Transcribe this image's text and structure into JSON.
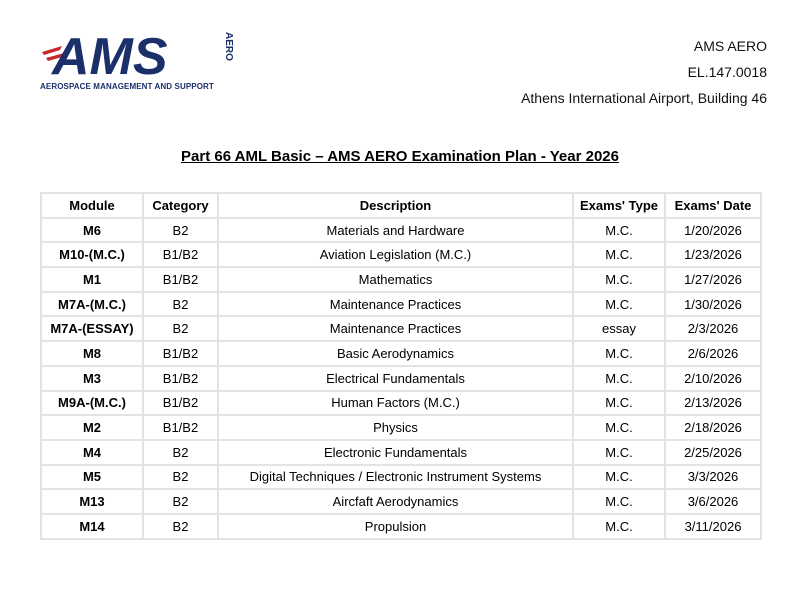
{
  "logo": {
    "text": "AMS",
    "side_text": "AERO",
    "tagline": "AEROSPACE MANAGEMENT AND SUPPORT",
    "colors": {
      "navy": "#1b2f6b",
      "red": "#c8272d"
    }
  },
  "org": {
    "name": "AMS AERO",
    "code": "EL.147.0018",
    "address": "Athens International Airport, Building 46"
  },
  "title": "Part 66 AML Basic – AMS AERO Examination Plan - Year 2026",
  "table": {
    "headers": [
      "Module",
      "Category",
      "Description",
      "Exams' Type",
      "Exams' Date"
    ],
    "rows": [
      [
        "M6",
        "B2",
        "Materials and Hardware",
        "M.C.",
        "1/20/2026"
      ],
      [
        "M10-(M.C.)",
        "B1/B2",
        "Aviation Legislation (M.C.)",
        "M.C.",
        "1/23/2026"
      ],
      [
        "M1",
        "B1/B2",
        "Mathematics",
        "M.C.",
        "1/27/2026"
      ],
      [
        "M7A-(M.C.)",
        "B2",
        "Maintenance Practices",
        "M.C.",
        "1/30/2026"
      ],
      [
        "M7A-(ESSAY)",
        "B2",
        "Maintenance Practices",
        "essay",
        "2/3/2026"
      ],
      [
        "M8",
        "B1/B2",
        "Basic Aerodynamics",
        "M.C.",
        "2/6/2026"
      ],
      [
        "M3",
        "B1/B2",
        "Electrical Fundamentals",
        "M.C.",
        "2/10/2026"
      ],
      [
        "M9A-(M.C.)",
        "B1/B2",
        "Human Factors (M.C.)",
        "M.C.",
        "2/13/2026"
      ],
      [
        "M2",
        "B1/B2",
        "Physics",
        "M.C.",
        "2/18/2026"
      ],
      [
        "M4",
        "B2",
        "Electronic Fundamentals",
        "M.C.",
        "2/25/2026"
      ],
      [
        "M5",
        "B2",
        "Digital Techniques / Electronic Instrument Systems",
        "M.C.",
        "3/3/2026"
      ],
      [
        "M13",
        "B2",
        "Aircfaft Aerodynamics",
        "M.C.",
        "3/6/2026"
      ],
      [
        "M14",
        "B2",
        "Propulsion",
        "M.C.",
        "3/11/2026"
      ]
    ]
  }
}
